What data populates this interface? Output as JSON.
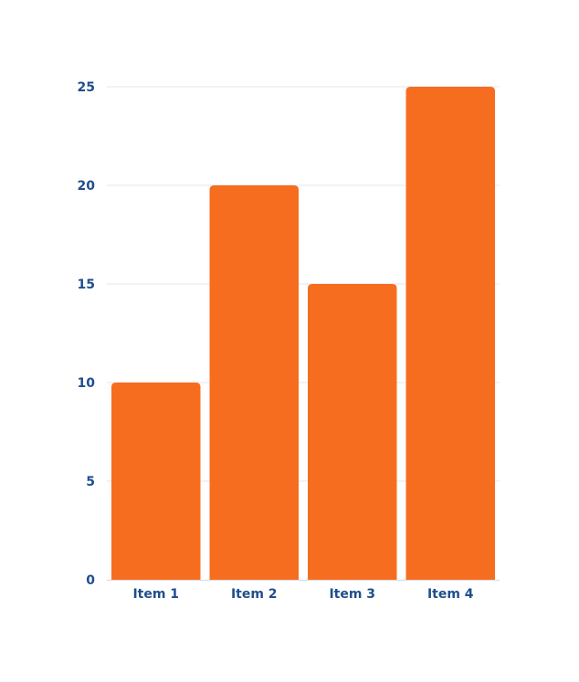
{
  "chart_data": {
    "type": "bar",
    "categories": [
      "Item 1",
      "Item 2",
      "Item 3",
      "Item 4"
    ],
    "values": [
      10,
      20,
      15,
      25
    ],
    "title": "",
    "xlabel": "",
    "ylabel": "",
    "ylim": [
      0,
      25
    ],
    "yticks": [
      0,
      5,
      10,
      15,
      20,
      25
    ],
    "grid": true,
    "legend": "none",
    "colors": {
      "bar": "#f76d20",
      "grid": "#e3e6f0",
      "axis": "#d5d9e6",
      "label": "#1f4e8c"
    }
  }
}
